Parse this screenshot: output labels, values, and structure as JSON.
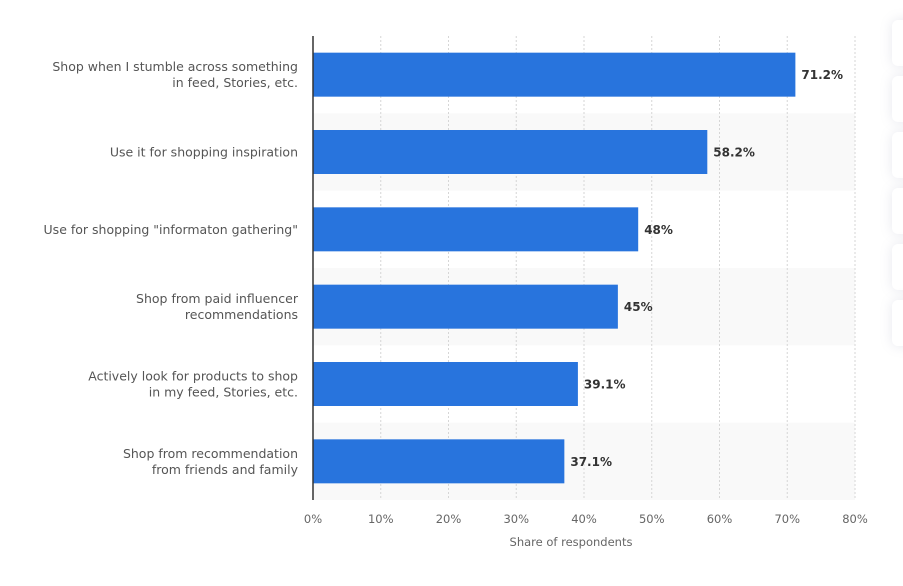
{
  "chart_data": {
    "type": "bar",
    "orientation": "horizontal",
    "categories": [
      [
        "Shop when I stumble across something",
        "in feed, Stories, etc."
      ],
      [
        "Use it for shopping inspiration"
      ],
      [
        "Use for shopping \"informaton gathering\""
      ],
      [
        "Shop from paid influencer",
        "recommendations"
      ],
      [
        "Actively look for products to shop",
        "in my feed, Stories, etc."
      ],
      [
        "Shop from recommendation",
        "from friends and family"
      ]
    ],
    "values": [
      71.2,
      58.2,
      48,
      45,
      39.1,
      37.1
    ],
    "value_labels": [
      "71.2%",
      "58.2%",
      "48%",
      "45%",
      "39.1%",
      "37.1%"
    ],
    "xlim": [
      0,
      80
    ],
    "xticks": [
      0,
      10,
      20,
      30,
      40,
      50,
      60,
      70,
      80
    ],
    "xtick_labels": [
      "0%",
      "10%",
      "20%",
      "30%",
      "40%",
      "50%",
      "60%",
      "70%",
      "80%"
    ],
    "xlabel": "Share of respondents",
    "ylabel": "",
    "title": "",
    "grid": true,
    "legend": "none",
    "bar_color": "#2874dd",
    "band_color": "#f9f9f9"
  },
  "toolbar": {
    "buttons": [
      "toolbar-button-1",
      "toolbar-button-2",
      "toolbar-button-3",
      "toolbar-button-4",
      "toolbar-button-5",
      "toolbar-button-6"
    ]
  }
}
